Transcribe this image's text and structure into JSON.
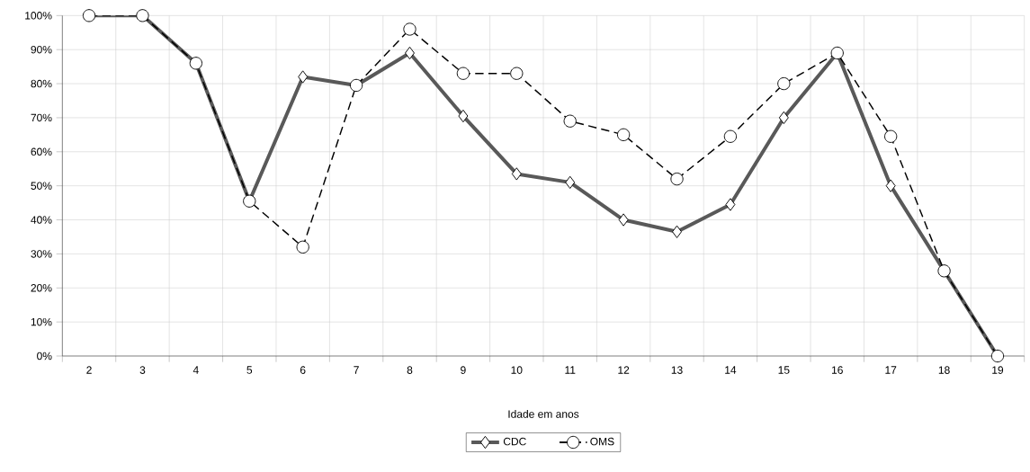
{
  "chart_data": {
    "type": "line",
    "xlabel": "Idade em anos",
    "categories": [
      "2",
      "3",
      "4",
      "5",
      "6",
      "7",
      "8",
      "9",
      "10",
      "11",
      "12",
      "13",
      "14",
      "15",
      "16",
      "17",
      "18",
      "19"
    ],
    "series": [
      {
        "name": "CDC",
        "color": "#595959",
        "marker": "diamond",
        "line_style": "solid",
        "values": [
          100,
          100,
          86,
          45.5,
          82,
          79.5,
          89,
          70.5,
          53.5,
          51,
          40,
          36.5,
          44.5,
          70,
          89,
          50,
          25,
          0
        ]
      },
      {
        "name": "OMS",
        "color": "#000000",
        "marker": "circle",
        "line_style": "dashed",
        "values": [
          100,
          100,
          86,
          45.5,
          32,
          79.5,
          96,
          83,
          83,
          69,
          65,
          52,
          64.5,
          80,
          89,
          64.5,
          25,
          0
        ]
      }
    ],
    "ylim": [
      0,
      100
    ],
    "yticks": [
      {
        "value": 0,
        "label": "0%"
      },
      {
        "value": 10,
        "label": "10%"
      },
      {
        "value": 20,
        "label": "20%"
      },
      {
        "value": 30,
        "label": "30%"
      },
      {
        "value": 40,
        "label": "40%"
      },
      {
        "value": 50,
        "label": "50%"
      },
      {
        "value": 60,
        "label": "60%"
      },
      {
        "value": 70,
        "label": "70%"
      },
      {
        "value": 80,
        "label": "80%"
      },
      {
        "value": 90,
        "label": "90%"
      },
      {
        "value": 100,
        "label": "100%"
      }
    ],
    "grid": true,
    "legend": "bottom"
  }
}
